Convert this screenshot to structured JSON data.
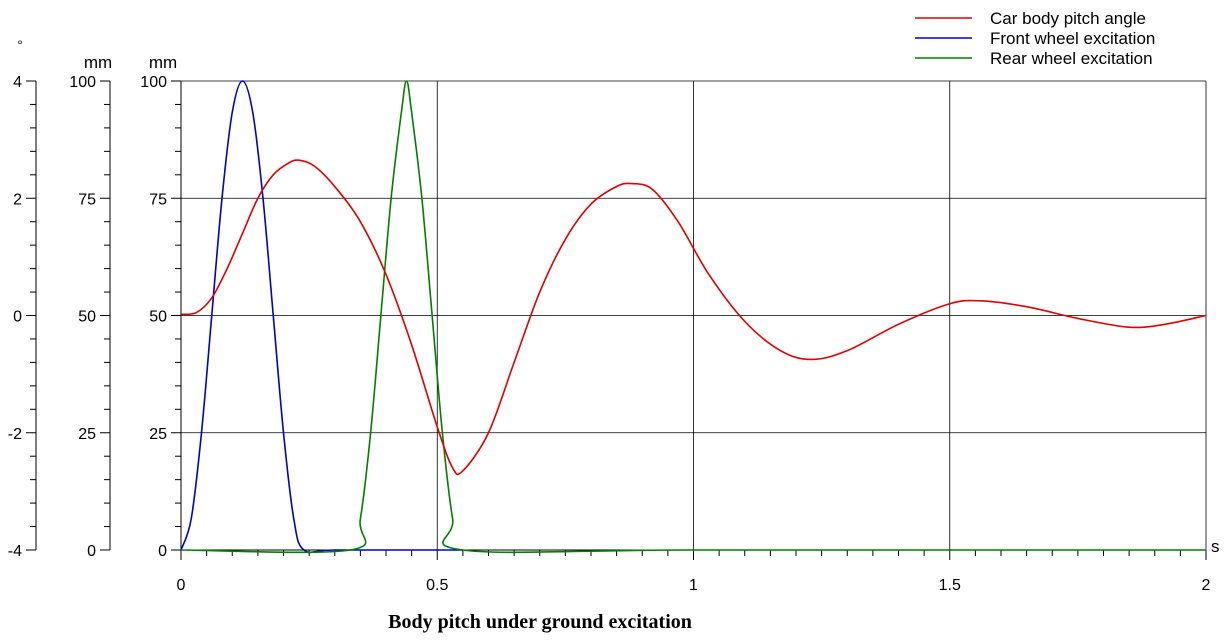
{
  "chart_data": {
    "type": "line",
    "title": "Body pitch under ground excitation",
    "xlabel": "s",
    "xlim": [
      0,
      2
    ],
    "x_ticks": [
      0,
      0.5,
      1,
      1.5,
      2
    ],
    "x_tick_labels": [
      "0",
      "0.5",
      "1",
      "1.5",
      "2"
    ],
    "grid": true,
    "legend_position": "top-right",
    "axes": [
      {
        "id": "angle",
        "unit": "°",
        "ylim": [
          -4,
          4
        ],
        "ticks": [
          -4,
          -2,
          0,
          2,
          4
        ],
        "tick_labels": [
          "-4",
          "-2",
          "0",
          "2",
          "4"
        ]
      },
      {
        "id": "mm1",
        "unit": "mm",
        "ylim": [
          0,
          100
        ],
        "ticks": [
          0,
          25,
          50,
          75,
          100
        ],
        "tick_labels": [
          "0",
          "25",
          "50",
          "75",
          "100"
        ]
      },
      {
        "id": "mm2",
        "unit": "mm",
        "ylim": [
          0,
          100
        ],
        "ticks": [
          0,
          25,
          50,
          75,
          100
        ],
        "tick_labels": [
          "0",
          "25",
          "50",
          "75",
          "100"
        ]
      }
    ],
    "series": [
      {
        "name": "Car body pitch angle",
        "color": "#e00000",
        "axis": "angle",
        "x": [
          0,
          0.03,
          0.06,
          0.09,
          0.12,
          0.15,
          0.18,
          0.21,
          0.23,
          0.26,
          0.3,
          0.35,
          0.4,
          0.45,
          0.5,
          0.53,
          0.55,
          0.6,
          0.65,
          0.7,
          0.75,
          0.8,
          0.85,
          0.88,
          0.92,
          0.97,
          1.03,
          1.1,
          1.17,
          1.23,
          1.3,
          1.4,
          1.5,
          1.56,
          1.65,
          1.75,
          1.85,
          1.92,
          2.0
        ],
        "y": [
          0.02,
          0.05,
          0.3,
          0.8,
          1.4,
          2.0,
          2.4,
          2.6,
          2.65,
          2.55,
          2.2,
          1.6,
          0.7,
          -0.5,
          -1.9,
          -2.6,
          -2.65,
          -2.0,
          -0.8,
          0.4,
          1.3,
          1.9,
          2.2,
          2.25,
          2.15,
          1.6,
          0.7,
          -0.1,
          -0.6,
          -0.75,
          -0.6,
          -0.15,
          0.2,
          0.25,
          0.15,
          -0.05,
          -0.2,
          -0.15,
          0.0
        ]
      },
      {
        "name": "Front wheel excitation",
        "color": "#0000d0",
        "axis": "mm1",
        "x": [
          0,
          0.02,
          0.04,
          0.06,
          0.08,
          0.1,
          0.12,
          0.14,
          0.16,
          0.18,
          0.2,
          0.22,
          0.24,
          0.3,
          0.5,
          0.55
        ],
        "y": [
          0,
          6.7,
          25,
          50,
          75,
          93.3,
          100,
          93.3,
          75,
          50,
          25,
          6.7,
          0,
          0,
          0,
          0
        ]
      },
      {
        "name": "Rear wheel excitation",
        "color": "#008000",
        "axis": "mm2",
        "x": [
          0,
          0.33,
          0.35,
          0.37,
          0.39,
          0.41,
          0.43,
          0.44,
          0.45,
          0.47,
          0.49,
          0.51,
          0.53,
          0.55,
          1.0,
          2.0
        ],
        "y": [
          0,
          0,
          6.7,
          25,
          50,
          75,
          93.3,
          100,
          93.3,
          75,
          50,
          25,
          6.7,
          0,
          0,
          0
        ]
      }
    ]
  }
}
